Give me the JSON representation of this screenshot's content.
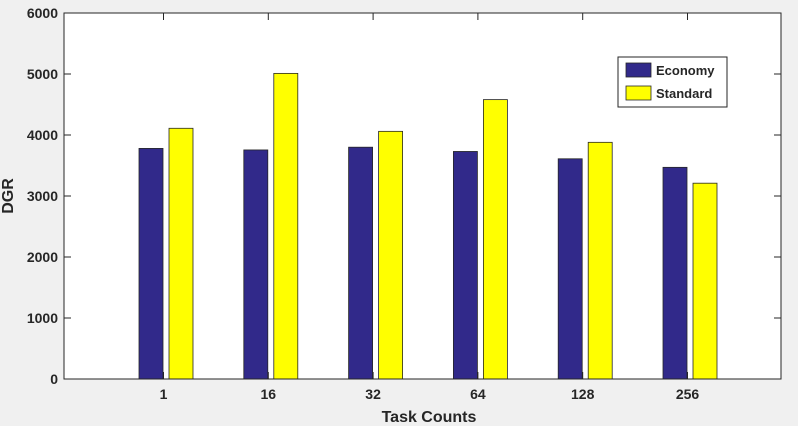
{
  "chart_data": {
    "type": "bar",
    "categories": [
      "1",
      "16",
      "32",
      "64",
      "128",
      "256"
    ],
    "series": [
      {
        "name": "Economy",
        "values": [
          3780,
          3755,
          3800,
          3730,
          3610,
          3470
        ],
        "color": "#31298a"
      },
      {
        "name": "Standard",
        "values": [
          4110,
          5010,
          4060,
          4580,
          3880,
          3210
        ],
        "color": "#ffff00"
      }
    ],
    "title": "",
    "xlabel": "Task Counts",
    "ylabel": "DGR",
    "ylim": [
      0,
      6000
    ],
    "yticks": [
      "0",
      "1000",
      "2000",
      "3000",
      "4000",
      "5000",
      "6000"
    ],
    "grid": false,
    "legend_position": "top-right",
    "background_color": "#f0f0f0",
    "plot_background_color": "#ffffff"
  }
}
